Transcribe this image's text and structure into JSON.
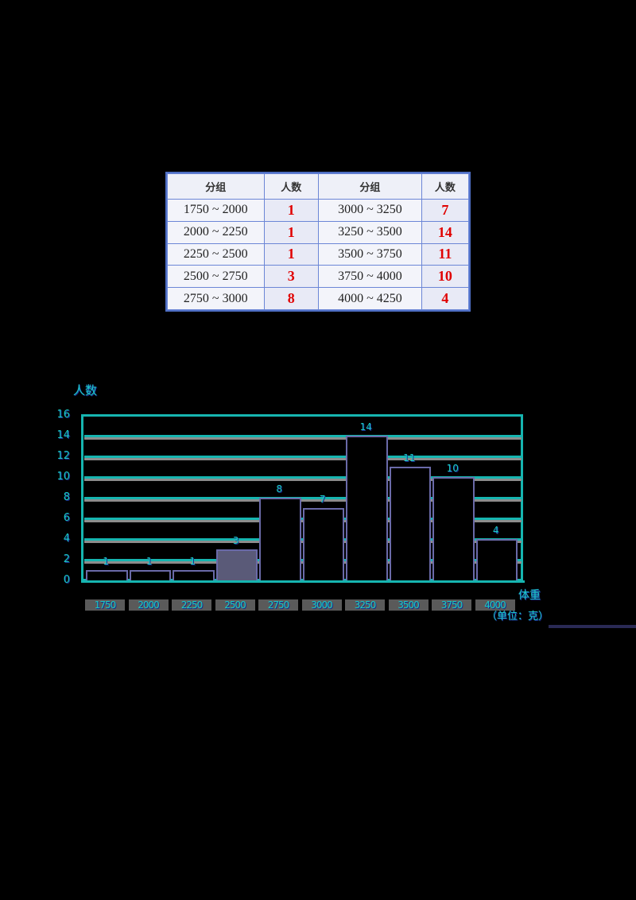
{
  "table": {
    "headers": [
      "分组",
      "人数",
      "分组",
      "人数"
    ],
    "rows": [
      {
        "range1": "1750 ~ 2000",
        "count1": "1",
        "range2": "3000 ~ 3250",
        "count2": "7"
      },
      {
        "range1": "2000 ~ 2250",
        "count1": "1",
        "range2": "3250 ~ 3500",
        "count2": "14"
      },
      {
        "range1": "2250 ~ 2500",
        "count1": "1",
        "range2": "3500 ~ 3750",
        "count2": "11"
      },
      {
        "range1": "2500 ~ 2750",
        "count1": "3",
        "range2": "3750 ~ 4000",
        "count2": "10"
      },
      {
        "range1": "2750 ~ 3000",
        "count1": "8",
        "range2": "4000 ~ 4250",
        "count2": "4"
      }
    ]
  },
  "chart_data": [
    {
      "type": "table",
      "title": "",
      "columns": [
        "分组",
        "人数"
      ],
      "categories": [
        "1750 ~ 2000",
        "2000 ~ 2250",
        "2250 ~ 2500",
        "2500 ~ 2750",
        "2750 ~ 3000",
        "3000 ~ 3250",
        "3250 ~ 3500",
        "3500 ~ 3750",
        "3750 ~ 4000",
        "4000 ~ 4250"
      ],
      "values": [
        1,
        1,
        1,
        3,
        8,
        7,
        14,
        11,
        10,
        4
      ]
    },
    {
      "type": "bar",
      "title": "",
      "xlabel": "体重",
      "xunit": "（单位：克）",
      "ylabel": "人数",
      "ylim": [
        0,
        16
      ],
      "yticks": [
        "0",
        "2",
        "4",
        "6",
        "8",
        "10",
        "12",
        "14",
        "16"
      ],
      "xticks": [
        "1750",
        "2000",
        "2250",
        "2500",
        "2750",
        "3000",
        "3250",
        "3500",
        "3750",
        "4000"
      ],
      "categories": [
        "1750-2000",
        "2000-2250",
        "2250-2500",
        "2500-2750",
        "2750-3000",
        "3000-3250",
        "3250-3500",
        "3500-3750",
        "3750-4000",
        "4000-4250"
      ],
      "values": [
        1,
        1,
        1,
        3,
        8,
        7,
        14,
        11,
        10,
        4
      ],
      "grid": true,
      "data_labels": true
    }
  ],
  "colors": {
    "count_text": "#e00000",
    "axis_text": "#19c9c3",
    "gridline": "#16b5b0",
    "bar_border": "#6a6aa8",
    "table_border": "#4f6fc4"
  }
}
